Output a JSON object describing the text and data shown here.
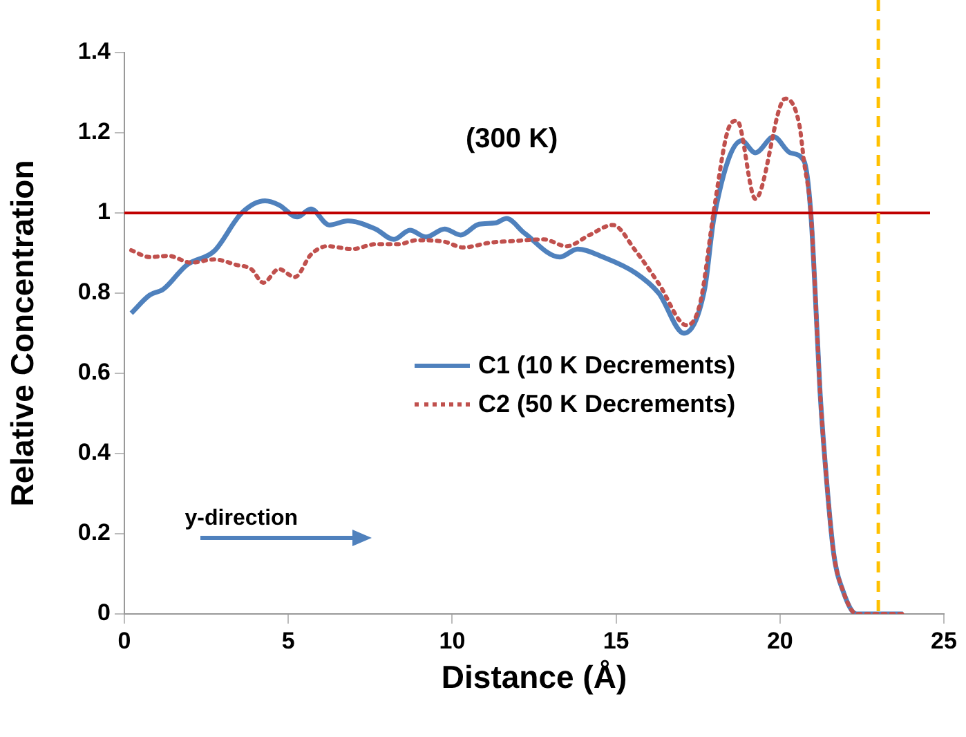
{
  "chart_data": {
    "type": "line",
    "xlabel": "Distance (Å)",
    "ylabel": "Relative Concentration",
    "xlim": [
      0,
      25
    ],
    "xticks": [
      0,
      5,
      10,
      15,
      20,
      25
    ],
    "ylim": [
      0,
      1.4
    ],
    "yticks": [
      0,
      0.2,
      0.4,
      0.6,
      0.8,
      1,
      1.2,
      1.4
    ],
    "grid": false,
    "legend": "right",
    "marker": "none",
    "annotations": [
      "(300 K)",
      "y-direction"
    ],
    "ref_lines": [
      {
        "axis": "y",
        "value": 1,
        "color": "#c00000",
        "line_style": "solid"
      },
      {
        "axis": "x",
        "value": 23,
        "color": "#ffc000",
        "line_style": "dashed"
      }
    ],
    "series": [
      {
        "name": "C1 (10 K Decrements)",
        "color": "#4f81bd",
        "line_style": "solid",
        "x": [
          0.21,
          0.77,
          1.19,
          1.9,
          2.74,
          3.58,
          4.29,
          4.71,
          5.27,
          5.69,
          6.25,
          6.82,
          7.66,
          8.22,
          8.71,
          9.2,
          9.77,
          10.26,
          10.82,
          11.31,
          11.66,
          12.2,
          13.28,
          13.83,
          14.6,
          15.6,
          16.3,
          17.07,
          17.7,
          17.99,
          18.83,
          19.25,
          19.81,
          20.31,
          20.73,
          20.94,
          21.15,
          21.22,
          21.43,
          21.64,
          21.92,
          22.34,
          23.75
        ],
        "values": [
          0.75,
          0.795,
          0.81,
          0.87,
          0.905,
          1.0,
          1.03,
          1.02,
          0.99,
          1.01,
          0.97,
          0.98,
          0.96,
          0.934,
          0.957,
          0.94,
          0.96,
          0.945,
          0.972,
          0.975,
          0.986,
          0.95,
          0.89,
          0.91,
          0.89,
          0.85,
          0.8,
          0.7,
          0.81,
          0.99,
          1.18,
          1.15,
          1.19,
          1.15,
          1.13,
          1.0,
          0.673,
          0.557,
          0.325,
          0.15,
          0.058,
          0,
          0
        ]
      },
      {
        "name": "C2 (50 K Decrements)",
        "color": "#c0504d",
        "line_style": "dotted",
        "x": [
          0.21,
          0.77,
          1.34,
          2.04,
          2.74,
          3.44,
          3.87,
          4.24,
          4.71,
          5.2,
          5.69,
          6.18,
          6.96,
          7.66,
          8.36,
          8.92,
          9.77,
          10.33,
          11.17,
          11.88,
          12.79,
          13.49,
          14.19,
          14.9,
          15.6,
          16.3,
          17.15,
          17.57,
          17.99,
          18.41,
          18.69,
          19.25,
          20.16,
          20.59,
          20.73,
          20.94,
          21.15,
          21.22,
          21.43,
          21.64,
          21.92,
          22.34,
          23.75
        ],
        "values": [
          0.907,
          0.89,
          0.893,
          0.876,
          0.884,
          0.87,
          0.86,
          0.826,
          0.86,
          0.84,
          0.896,
          0.917,
          0.91,
          0.922,
          0.922,
          0.932,
          0.928,
          0.914,
          0.926,
          0.93,
          0.934,
          0.917,
          0.945,
          0.97,
          0.905,
          0.824,
          0.72,
          0.777,
          1.01,
          1.206,
          1.23,
          1.035,
          1.285,
          1.22,
          1.13,
          1.0,
          0.673,
          0.557,
          0.325,
          0.15,
          0.058,
          0,
          0
        ]
      }
    ]
  }
}
